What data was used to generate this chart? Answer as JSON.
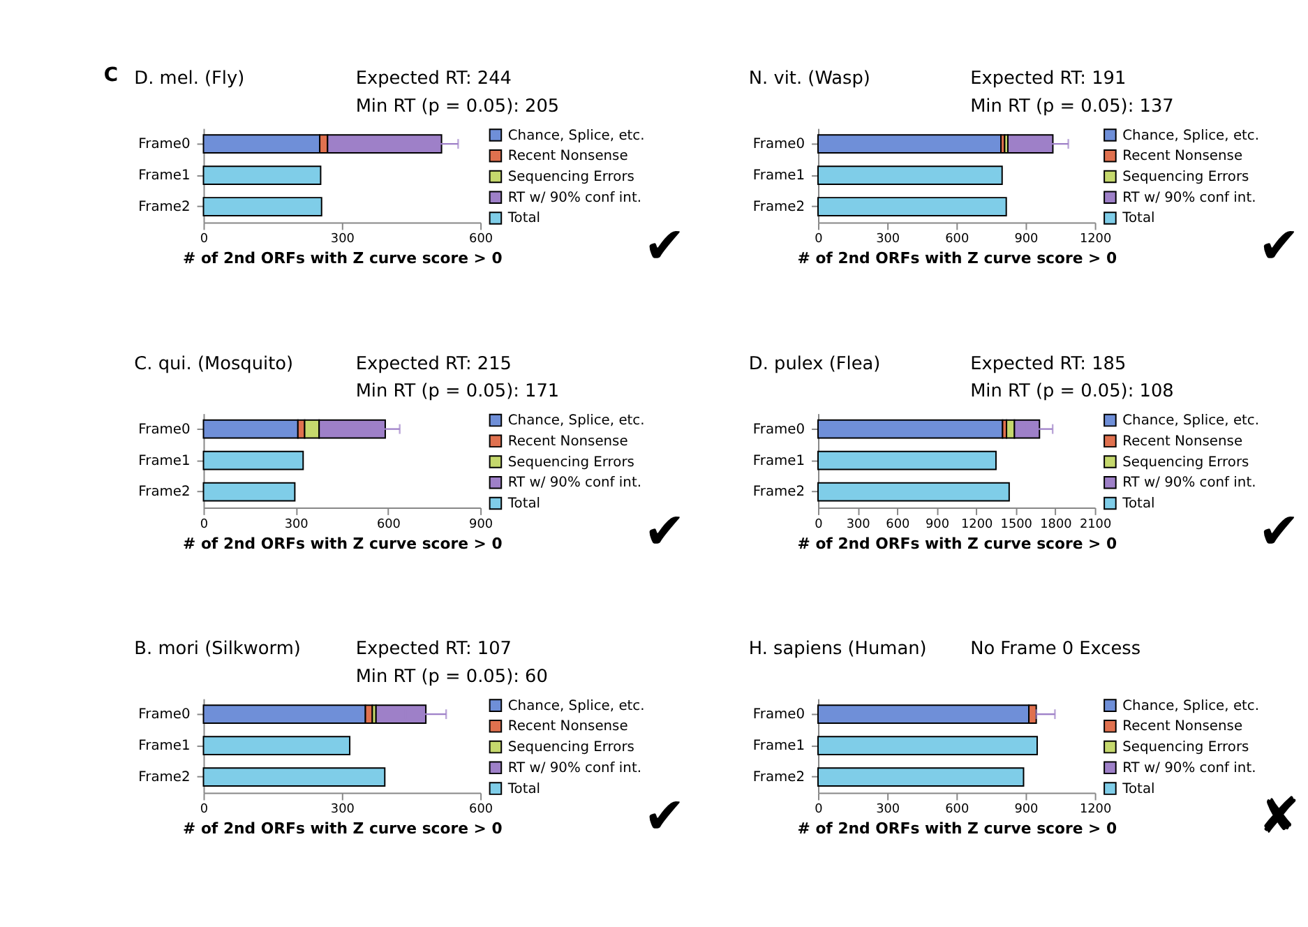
{
  "chart_data": [
    {
      "type": "bar",
      "orientation": "horizontal",
      "stacked": true,
      "title": "D. mel. (Fly)",
      "annotations": [
        "✔",
        "Expected RT: 244",
        "Min RT (p = 0.05): 205",
        "C"
      ],
      "xlabel": "# of 2nd ORFs with Z curve score > 0",
      "categories": [
        "Frame0",
        "Frame1",
        "Frame2"
      ],
      "xlim": [
        0,
        600
      ],
      "xticks": [
        0,
        300,
        600
      ],
      "grid": false,
      "legend": "right",
      "series": [
        {
          "name": "Chance, Splice, etc.",
          "color": "#6f8fd8",
          "values": [
            252,
            null,
            null
          ]
        },
        {
          "name": "Recent Nonsense",
          "color": "#e0714f",
          "values": [
            17,
            null,
            null
          ]
        },
        {
          "name": "Sequencing Errors",
          "color": "#c5d86d",
          "values": [
            null,
            null,
            null
          ]
        },
        {
          "name": "RT w/ 90% conf int.",
          "color": "#9e80c8",
          "values": [
            247,
            null,
            null
          ],
          "errors": [
            36,
            null,
            null
          ]
        },
        {
          "name": "Total",
          "color": "#7fcde8",
          "values": [
            null,
            254,
            256
          ]
        }
      ]
    },
    {
      "type": "bar",
      "orientation": "horizontal",
      "stacked": true,
      "title": "N. vit. (Wasp)",
      "annotations": [
        "✔",
        "Expected RT: 191",
        "Min RT (p = 0.05): 137"
      ],
      "xlabel": "# of 2nd ORFs with Z curve score > 0",
      "categories": [
        "Frame0",
        "Frame1",
        "Frame2"
      ],
      "xlim": [
        0,
        1200
      ],
      "xticks": [
        0,
        300,
        600,
        900,
        1200
      ],
      "grid": false,
      "legend": "right",
      "series": [
        {
          "name": "Chance, Splice, etc.",
          "color": "#6f8fd8",
          "values": [
            793,
            null,
            null
          ]
        },
        {
          "name": "Recent Nonsense",
          "color": "#e0714f",
          "values": [
            16,
            null,
            null
          ]
        },
        {
          "name": "Sequencing Errors",
          "color": "#c5d86d",
          "values": [
            14,
            null,
            null
          ]
        },
        {
          "name": "RT w/ 90% conf int.",
          "color": "#9e80c8",
          "values": [
            195,
            null,
            null
          ],
          "errors": [
            67,
            null,
            null
          ]
        },
        {
          "name": "Total",
          "color": "#7fcde8",
          "values": [
            null,
            798,
            816
          ]
        }
      ]
    },
    {
      "type": "bar",
      "orientation": "horizontal",
      "stacked": true,
      "title": "C. qui. (Mosquito)",
      "annotations": [
        "✔",
        "Expected RT: 215",
        "Min RT (p = 0.05): 171"
      ],
      "xlabel": "# of 2nd ORFs with Z curve score > 0",
      "categories": [
        "Frame0",
        "Frame1",
        "Frame2"
      ],
      "xlim": [
        0,
        900
      ],
      "xticks": [
        0,
        300,
        600,
        900
      ],
      "grid": false,
      "legend": "right",
      "series": [
        {
          "name": "Chance, Splice, etc.",
          "color": "#6f8fd8",
          "values": [
            307,
            null,
            null
          ]
        },
        {
          "name": "Recent Nonsense",
          "color": "#e0714f",
          "values": [
            22,
            null,
            null
          ]
        },
        {
          "name": "Sequencing Errors",
          "color": "#c5d86d",
          "values": [
            47,
            null,
            null
          ]
        },
        {
          "name": "RT w/ 90% conf int.",
          "color": "#9e80c8",
          "values": [
            215,
            null,
            null
          ],
          "errors": [
            47,
            null,
            null
          ]
        },
        {
          "name": "Total",
          "color": "#7fcde8",
          "values": [
            null,
            324,
            297
          ]
        }
      ]
    },
    {
      "type": "bar",
      "orientation": "horizontal",
      "stacked": true,
      "title": "D. pulex (Flea)",
      "annotations": [
        "✔",
        "Expected RT: 185",
        "Min RT (p = 0.05): 108"
      ],
      "xlabel": "# of 2nd ORFs with Z curve score > 0",
      "categories": [
        "Frame0",
        "Frame1",
        "Frame2"
      ],
      "xlim": [
        0,
        2100
      ],
      "xticks": [
        0,
        300,
        600,
        900,
        1200,
        1500,
        1800,
        2100
      ],
      "grid": false,
      "legend": "right",
      "series": [
        {
          "name": "Chance, Splice, etc.",
          "color": "#6f8fd8",
          "values": [
            1400,
            null,
            null
          ]
        },
        {
          "name": "Recent Nonsense",
          "color": "#e0714f",
          "values": [
            30,
            null,
            null
          ]
        },
        {
          "name": "Sequencing Errors",
          "color": "#c5d86d",
          "values": [
            60,
            null,
            null
          ]
        },
        {
          "name": "RT w/ 90% conf int.",
          "color": "#9e80c8",
          "values": [
            190,
            null,
            null
          ],
          "errors": [
            100,
            null,
            null
          ]
        },
        {
          "name": "Total",
          "color": "#7fcde8",
          "values": [
            null,
            1350,
            1450
          ]
        }
      ]
    },
    {
      "type": "bar",
      "orientation": "horizontal",
      "stacked": true,
      "title": "B. mori (Silkworm)",
      "annotations": [
        "✔",
        "Expected RT: 107",
        "Min RT (p = 0.05): 60"
      ],
      "xlabel": "# of 2nd ORFs with Z curve score > 0",
      "categories": [
        "Frame0",
        "Frame1",
        "Frame2"
      ],
      "xlim": [
        0,
        600
      ],
      "xticks": [
        0,
        300,
        600
      ],
      "grid": false,
      "legend": "right",
      "series": [
        {
          "name": "Chance, Splice, etc.",
          "color": "#6f8fd8",
          "values": [
            351,
            null,
            null
          ]
        },
        {
          "name": "Recent Nonsense",
          "color": "#e0714f",
          "values": [
            15,
            null,
            null
          ]
        },
        {
          "name": "Sequencing Errors",
          "color": "#c5d86d",
          "values": [
            8,
            null,
            null
          ]
        },
        {
          "name": "RT w/ 90% conf int.",
          "color": "#9e80c8",
          "values": [
            108,
            null,
            null
          ],
          "errors": [
            44,
            null,
            null
          ]
        },
        {
          "name": "Total",
          "color": "#7fcde8",
          "values": [
            null,
            317,
            393
          ]
        }
      ]
    },
    {
      "type": "bar",
      "orientation": "horizontal",
      "stacked": true,
      "title": "H. sapiens (Human)",
      "annotations": [
        "✘",
        "No Frame 0 Excess"
      ],
      "xlabel": "# of 2nd ORFs with Z curve score > 0",
      "categories": [
        "Frame0",
        "Frame1",
        "Frame2"
      ],
      "xlim": [
        0,
        1200
      ],
      "xticks": [
        0,
        300,
        600,
        900,
        1200
      ],
      "grid": false,
      "legend": "right",
      "series": [
        {
          "name": "Chance, Splice, etc.",
          "color": "#6f8fd8",
          "values": [
            914,
            null,
            null
          ]
        },
        {
          "name": "Recent Nonsense",
          "color": "#e0714f",
          "values": [
            32,
            null,
            null
          ]
        },
        {
          "name": "Sequencing Errors",
          "color": "#c5d86d",
          "values": [
            null,
            null,
            null
          ]
        },
        {
          "name": "RT w/ 90% conf int.",
          "color": "#9e80c8",
          "values": [
            0,
            null,
            null
          ],
          "errors": [
            [
              946,
              1027
            ],
            null,
            null
          ]
        },
        {
          "name": "Total",
          "color": "#7fcde8",
          "values": [
            null,
            950,
            891
          ]
        }
      ]
    }
  ]
}
